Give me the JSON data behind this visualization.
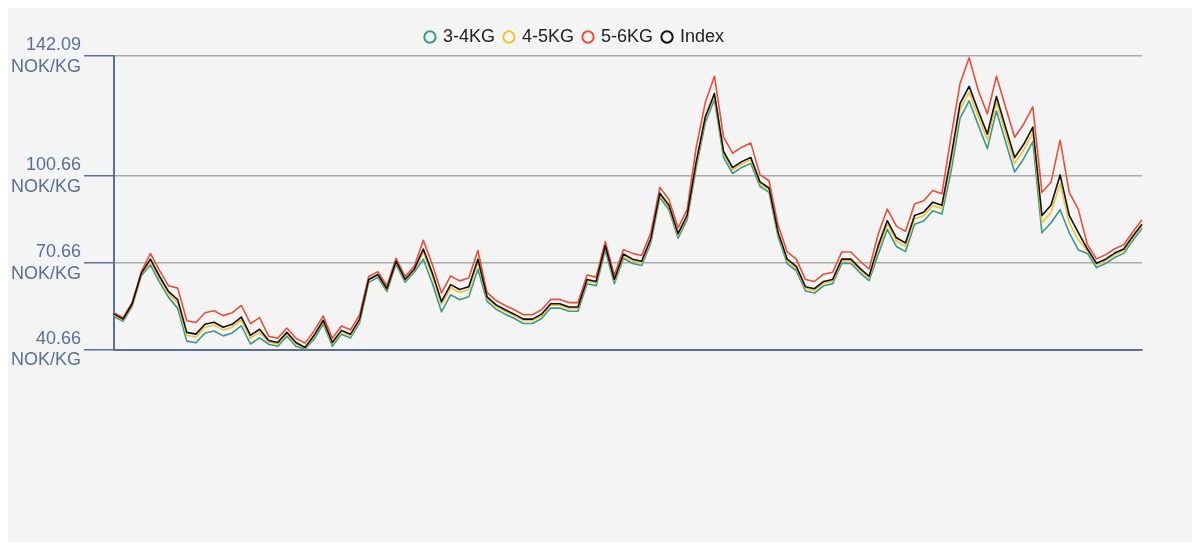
{
  "chart_data": {
    "type": "line",
    "categories": [
      null,
      null,
      null,
      null,
      null,
      null,
      null,
      null,
      null,
      null,
      null,
      null,
      null,
      null,
      null,
      null,
      null,
      null,
      null,
      null,
      null,
      null,
      null,
      null,
      null,
      null,
      null,
      null,
      null,
      null,
      null,
      null,
      null,
      null,
      null,
      null,
      null,
      null,
      null,
      null,
      null,
      null,
      null,
      null,
      null,
      null,
      null,
      null,
      null,
      null,
      null,
      null,
      null,
      null,
      null,
      null,
      null,
      null,
      null,
      null,
      null,
      null,
      null,
      null,
      null,
      null,
      null,
      null,
      null,
      null,
      null,
      null,
      null,
      null,
      null,
      null,
      null,
      null,
      null,
      null,
      null,
      null,
      null,
      null,
      null,
      null,
      null,
      null,
      null,
      null,
      null,
      null,
      null,
      null,
      null,
      null,
      null,
      null,
      null,
      null,
      null,
      null,
      null,
      null,
      null,
      null,
      null,
      null,
      null,
      null,
      null,
      null,
      null,
      null
    ],
    "series": [
      {
        "name": "3-4KG",
        "color": "#3a9a8a",
        "values": [
          52.1,
          50.4,
          55.7,
          66.2,
          69.9,
          64,
          58.7,
          54.9,
          43.6,
          43,
          46.4,
          47.1,
          45.4,
          46.4,
          48.9,
          42.6,
          44.7,
          42.5,
          41.8,
          45.3,
          41.8,
          40.8,
          44.3,
          49.5,
          41.8,
          46,
          44.7,
          49.9,
          63.9,
          65.6,
          60.7,
          70.2,
          63.9,
          67.4,
          71.9,
          63.5,
          53.7,
          59.6,
          57.9,
          58.9,
          68.4,
          57.4,
          54.6,
          52.9,
          51.4,
          49.7,
          49.7,
          51.4,
          55,
          55,
          53.9,
          53.9,
          63.4,
          62.7,
          75,
          63.4,
          72.2,
          70.4,
          69.7,
          77.4,
          93.2,
          89,
          79.2,
          85.5,
          103.6,
          119.1,
          127.1,
          107.1,
          101.5,
          103.6,
          105,
          97.1,
          95,
          79.6,
          70.4,
          67.9,
          60.9,
          60.2,
          62.7,
          63.4,
          70.4,
          70.4,
          67.2,
          64.5,
          73.5,
          82.2,
          76.3,
          74.5,
          84,
          85.1,
          88.6,
          87.5,
          102,
          120.6,
          126.6,
          118.2,
          110.1,
          123.1,
          112.5,
          102,
          106.6,
          112.5,
          81,
          84.5,
          89,
          81,
          75.1,
          73.9,
          69,
          70.4,
          72.5,
          73.9,
          78.4,
          82.5
        ]
      },
      {
        "name": "4-5KG",
        "color": "#f2c23a",
        "values": [
          52.6,
          50.9,
          56.2,
          66.7,
          71.1,
          65.2,
          59.9,
          56.9,
          45.6,
          45,
          48.4,
          49.1,
          47.4,
          48.4,
          50.9,
          44.6,
          46.7,
          43.3,
          42.6,
          46.1,
          42.6,
          41.1,
          45.1,
          50.3,
          42.6,
          46.8,
          45.5,
          50.7,
          64.6,
          66.3,
          61.4,
          70.9,
          64.6,
          68.1,
          74.4,
          66,
          56.2,
          62.1,
          60.4,
          61.4,
          70.9,
          58.4,
          55.6,
          53.9,
          52.4,
          50.7,
          50.7,
          52.4,
          56,
          56,
          54.9,
          54.9,
          64.4,
          63.7,
          76,
          64.4,
          73.2,
          71.3,
          70.6,
          78.3,
          94.1,
          89.9,
          80.1,
          86.4,
          104.8,
          120.3,
          128.3,
          108.3,
          102.7,
          104.8,
          106.2,
          98,
          95.9,
          80.5,
          71.3,
          68.8,
          61.8,
          61.1,
          63.6,
          64.3,
          71.3,
          71.3,
          68.1,
          65.4,
          75.3,
          84,
          78.1,
          76.3,
          85.8,
          86.9,
          90.4,
          89.3,
          105,
          123.6,
          129.6,
          121.2,
          113.1,
          126.1,
          115.5,
          105,
          109.6,
          115.5,
          84.5,
          88,
          98,
          84.5,
          78.6,
          74.9,
          70,
          71.4,
          73.5,
          74.9,
          79.4,
          83.5
        ]
      },
      {
        "name": "5-6KG",
        "color": "#e8503a",
        "values": [
          53.4,
          51.7,
          57,
          67.5,
          73.9,
          68,
          62.7,
          61.9,
          50.6,
          50,
          53.4,
          54.1,
          52.4,
          53.4,
          55.9,
          49.6,
          51.7,
          45.3,
          44.6,
          48.1,
          44.6,
          42.9,
          47.1,
          52.3,
          44.6,
          48.8,
          47.5,
          52.7,
          65.9,
          67.6,
          62.7,
          72.2,
          65.9,
          69.4,
          78.4,
          70,
          60.2,
          66.1,
          64.4,
          65.4,
          74.9,
          60.4,
          57.6,
          55.9,
          54.4,
          52.7,
          52.7,
          54.4,
          58,
          58,
          56.9,
          56.9,
          66.4,
          65.7,
          78,
          66.4,
          75.2,
          73.9,
          73.2,
          80.9,
          96.7,
          92.5,
          82.7,
          89,
          110.6,
          126.1,
          135.1,
          114.1,
          108.5,
          110.6,
          112,
          101.1,
          99,
          83.6,
          74.4,
          71.9,
          64.9,
          64.2,
          66.7,
          67.4,
          74.4,
          74.4,
          71.2,
          68.5,
          80.5,
          89.2,
          83.3,
          81.5,
          91,
          92.1,
          95.6,
          94.5,
          114,
          132.6,
          141.5,
          130.2,
          122.1,
          135.1,
          124.5,
          114,
          118.6,
          124.5,
          95,
          98.5,
          113,
          95,
          89.1,
          76.9,
          72,
          73.4,
          75.5,
          76.9,
          81.4,
          85.5
        ]
      },
      {
        "name": "Index",
        "color": "#111111",
        "values": [
          52.9,
          51.2,
          56.5,
          67,
          71.9,
          66,
          60.7,
          57.9,
          46.6,
          46,
          49.4,
          50.1,
          48.4,
          49.4,
          51.9,
          45.6,
          47.7,
          43.8,
          43.1,
          46.6,
          43.1,
          41.4,
          45.6,
          50.8,
          43.1,
          47.3,
          46,
          51.2,
          64.9,
          66.6,
          61.7,
          71.2,
          64.9,
          68.4,
          75.4,
          67,
          57.2,
          63.1,
          61.4,
          62.4,
          71.9,
          58.9,
          56.1,
          54.4,
          52.9,
          51.2,
          51.2,
          52.9,
          56.5,
          56.5,
          55.4,
          55.4,
          64.9,
          64.2,
          76.5,
          64.9,
          73.7,
          71.9,
          71.2,
          78.9,
          94.7,
          90.5,
          80.7,
          87,
          105.6,
          121.1,
          129.1,
          109.1,
          103.5,
          105.6,
          107,
          98.6,
          96.5,
          81.1,
          71.9,
          69.4,
          62.4,
          61.7,
          64.2,
          64.9,
          71.9,
          71.9,
          68.7,
          66,
          76.5,
          85.2,
          79.3,
          77.5,
          87,
          88.1,
          91.6,
          90.5,
          107,
          125.6,
          131.6,
          123.2,
          115.1,
          128.1,
          117.5,
          107,
          111.6,
          117.5,
          87,
          90.5,
          101,
          87,
          81.1,
          75.4,
          70.5,
          71.9,
          74,
          75.4,
          79.9,
          84
        ]
      }
    ],
    "ylim": [
      40.66,
      142.09
    ],
    "yticks": [
      {
        "value": 40.66,
        "label": "40.66 NOK/KG"
      },
      {
        "value": 70.66,
        "label": "70.66 NOK/KG"
      },
      {
        "value": 100.66,
        "label": "100.66 NOK/KG"
      },
      {
        "value": 142.09,
        "label": "142.09 NOK/KG"
      }
    ],
    "tick_labels": "y",
    "grid": true,
    "legend": "top"
  }
}
